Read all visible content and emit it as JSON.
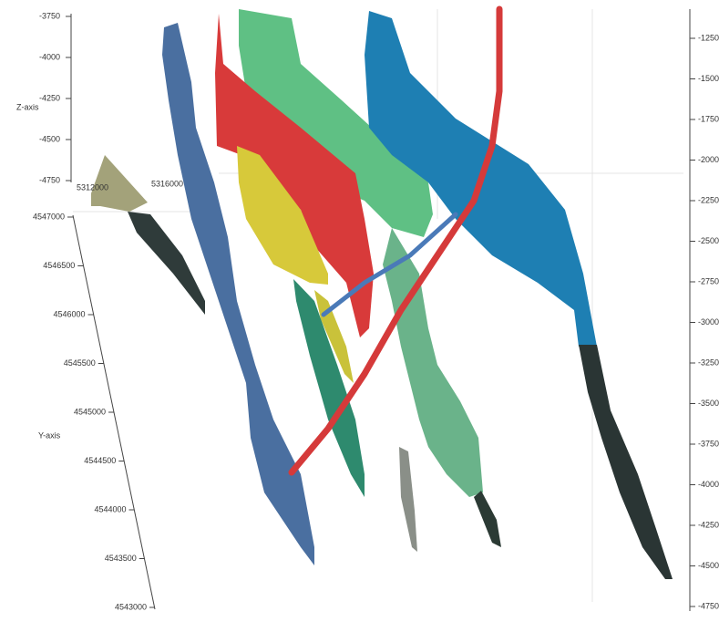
{
  "scene": {
    "z_axis": {
      "label": "Z-axis",
      "ticks": [
        "-3750",
        "-4000",
        "-4250",
        "-4500",
        "-4750"
      ]
    },
    "x_axis": {
      "ticks": [
        "5312000",
        "5316000"
      ]
    },
    "y_axis": {
      "label": "Y-axis",
      "ticks": [
        "4547000",
        "4546500",
        "4546000",
        "4545500",
        "4545000",
        "4544500",
        "4544000",
        "4543500",
        "4543000"
      ]
    },
    "right_axis": {
      "ticks": [
        "-1250",
        "-1500",
        "-1750",
        "-2000",
        "-2250",
        "-2500",
        "-2750",
        "-3000",
        "-3250",
        "-3500",
        "-3750",
        "-4000",
        "-4250",
        "-4500",
        "-4750"
      ]
    }
  }
}
